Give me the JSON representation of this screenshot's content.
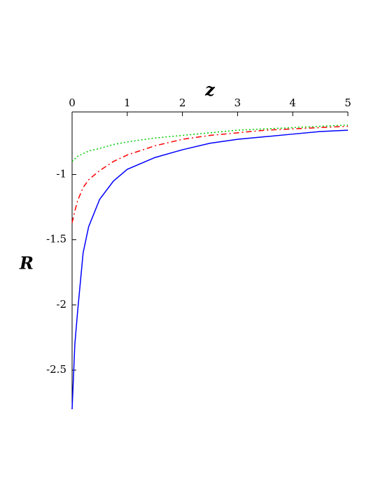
{
  "chart_data": {
    "type": "line",
    "x_label": "z",
    "y_label": "R",
    "x": [
      0,
      0.05,
      0.1,
      0.2,
      0.3,
      0.5,
      0.75,
      1,
      1.5,
      2,
      2.5,
      3,
      3.5,
      4,
      4.5,
      5
    ],
    "series": [
      {
        "color": "#0000ff",
        "style": "solid",
        "values": [
          -2.8,
          -2.3,
          -2.05,
          -1.6,
          -1.4,
          -1.19,
          -1.05,
          -0.96,
          -0.87,
          -0.81,
          -0.76,
          -0.73,
          -0.71,
          -0.69,
          -0.67,
          -0.66
        ]
      },
      {
        "color": "#ff0000",
        "style": "dashdot",
        "values": [
          -1.37,
          -1.28,
          -1.2,
          -1.1,
          -1.04,
          -0.97,
          -0.9,
          -0.85,
          -0.78,
          -0.73,
          -0.7,
          -0.68,
          -0.66,
          -0.65,
          -0.64,
          -0.63
        ]
      },
      {
        "color": "#00cc00",
        "style": "dotted",
        "values": [
          -0.9,
          -0.88,
          -0.86,
          -0.84,
          -0.82,
          -0.8,
          -0.77,
          -0.75,
          -0.72,
          -0.7,
          -0.68,
          -0.66,
          -0.65,
          -0.64,
          -0.63,
          -0.62
        ]
      }
    ],
    "xlim": [
      0,
      5
    ],
    "xticks": [
      0,
      1,
      2,
      3,
      4,
      5
    ],
    "ylim": [
      -2.8,
      -0.52
    ],
    "yticks": [
      -2.5,
      -2,
      -1.5,
      -1
    ]
  }
}
